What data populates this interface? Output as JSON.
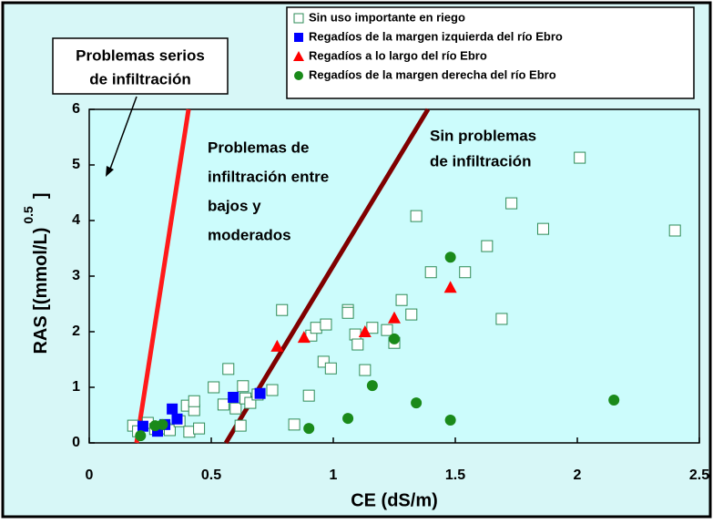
{
  "chart_data": {
    "type": "scatter",
    "xlabel": "CE (dS/m)",
    "ylabel": "RAS [(mmol/L)",
    "ylabel_exponent": "0.5",
    "ylabel_close": "]",
    "xlim": [
      0,
      2.5
    ],
    "ylim": [
      0,
      6
    ],
    "xticks": [
      0,
      0.5,
      1,
      1.5,
      2,
      2.5
    ],
    "yticks": [
      0,
      1,
      2,
      3,
      4,
      5,
      6
    ],
    "annotations": [
      {
        "lines": [
          "Problemas serios",
          "de infiltración"
        ]
      },
      {
        "lines": [
          "Problemas de",
          "infiltración entre",
          "bajos y",
          "moderados"
        ]
      },
      {
        "lines": [
          "Sin problemas",
          "de infiltración"
        ]
      }
    ],
    "reference_lines": [
      {
        "color": "#ff1a1a",
        "x": [
          0.194,
          0.407
        ],
        "y": [
          0,
          6
        ]
      },
      {
        "color": "#800000",
        "x": [
          0.56,
          1.388
        ],
        "y": [
          0,
          6
        ]
      }
    ],
    "series": [
      {
        "name": "Sin uso importante en riego",
        "marker": "open-square",
        "color": "#2e8b57",
        "x": [
          0.18,
          0.2,
          0.24,
          0.27,
          0.31,
          0.33,
          0.37,
          0.4,
          0.41,
          0.43,
          0.43,
          0.45,
          0.51,
          0.55,
          0.57,
          0.6,
          0.62,
          0.63,
          0.64,
          0.66,
          0.69,
          0.75,
          0.79,
          0.84,
          0.9,
          0.91,
          0.93,
          0.97,
          0.96,
          0.99,
          1.06,
          1.06,
          1.09,
          1.1,
          1.13,
          1.16,
          1.22,
          1.25,
          1.28,
          1.32,
          1.34,
          1.4,
          1.54,
          1.63,
          1.69,
          1.73,
          1.86,
          2.01,
          2.4
        ],
        "values": [
          0.31,
          0.21,
          0.36,
          0.25,
          0.26,
          0.23,
          0.39,
          0.67,
          0.2,
          0.59,
          0.75,
          0.26,
          1.0,
          0.69,
          1.33,
          0.62,
          0.31,
          1.02,
          0.8,
          0.72,
          0.87,
          0.95,
          2.39,
          0.33,
          0.85,
          1.93,
          2.07,
          2.13,
          1.46,
          1.34,
          2.39,
          2.34,
          1.95,
          1.77,
          1.31,
          2.07,
          2.03,
          1.8,
          2.57,
          2.31,
          4.08,
          3.07,
          3.07,
          3.54,
          2.23,
          4.31,
          3.85,
          5.13,
          3.82
        ]
      },
      {
        "name": "Regadíos de la margen izquierda del río Ebro",
        "marker": "square",
        "color": "#0000ff",
        "x": [
          0.22,
          0.28,
          0.31,
          0.34,
          0.36,
          0.59,
          0.7
        ],
        "values": [
          0.3,
          0.21,
          0.33,
          0.61,
          0.43,
          0.82,
          0.89
        ]
      },
      {
        "name": "Regadíos a lo largo del río Ebro",
        "marker": "triangle",
        "color": "#ff0000",
        "x": [
          0.77,
          0.88,
          1.13,
          1.25,
          1.48
        ],
        "values": [
          1.74,
          1.9,
          2.0,
          2.25,
          2.8
        ]
      },
      {
        "name": "Regadíos de la margen derecha del río Ebro",
        "marker": "circle",
        "color": "#1a8a1a",
        "x": [
          0.21,
          0.27,
          0.3,
          0.9,
          1.06,
          1.16,
          1.25,
          1.34,
          1.48,
          1.48,
          2.15
        ],
        "values": [
          0.13,
          0.31,
          0.33,
          0.26,
          0.44,
          1.03,
          1.87,
          0.72,
          3.34,
          0.41,
          0.77
        ]
      }
    ]
  }
}
